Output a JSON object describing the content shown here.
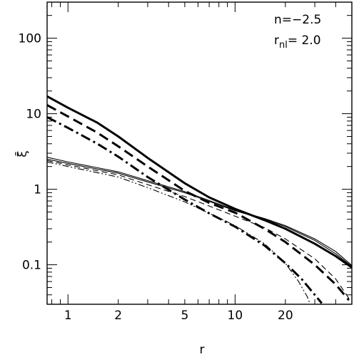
{
  "chart_data": {
    "type": "line",
    "title": "",
    "xlabel": "r",
    "ylabel": "ξ̄",
    "xscale": "log",
    "yscale": "log",
    "xlim": [
      0.75,
      50
    ],
    "ylim": [
      0.03,
      300
    ],
    "xticks": [
      {
        "value": 1,
        "label": "1"
      },
      {
        "value": 2,
        "label": "2"
      },
      {
        "value": 5,
        "label": "5"
      },
      {
        "value": 10,
        "label": "10"
      },
      {
        "value": 20,
        "label": "20"
      }
    ],
    "yticks": [
      {
        "value": 0.1,
        "label": "0.1"
      },
      {
        "value": 1,
        "label": "1"
      },
      {
        "value": 10,
        "label": "10"
      },
      {
        "value": 100,
        "label": "100"
      }
    ],
    "annotations": [
      {
        "id": "n",
        "text": "n=−2.5"
      },
      {
        "id": "rnl_pre",
        "text": "r"
      },
      {
        "id": "rnl_sub",
        "text": "nl"
      },
      {
        "id": "rnl_val",
        "text": "=  2.0"
      }
    ],
    "series": [
      {
        "style": "thick-solid",
        "points": [
          [
            0.75,
            17
          ],
          [
            1,
            12
          ],
          [
            1.5,
            7.6
          ],
          [
            2,
            5.0
          ],
          [
            3,
            2.6
          ],
          [
            5,
            1.2
          ],
          [
            7,
            0.78
          ],
          [
            10,
            0.55
          ],
          [
            15,
            0.39
          ],
          [
            20,
            0.3
          ],
          [
            30,
            0.19
          ],
          [
            40,
            0.13
          ],
          [
            50,
            0.092
          ]
        ]
      },
      {
        "style": "thick-dashed",
        "points": [
          [
            0.75,
            13
          ],
          [
            1,
            9.2
          ],
          [
            1.5,
            5.6
          ],
          [
            2,
            3.7
          ],
          [
            3,
            2.0
          ],
          [
            5,
            0.95
          ],
          [
            7,
            0.66
          ],
          [
            10,
            0.49
          ],
          [
            15,
            0.3
          ],
          [
            20,
            0.2
          ],
          [
            30,
            0.1
          ],
          [
            40,
            0.055
          ],
          [
            48,
            0.034
          ]
        ]
      },
      {
        "style": "thick-dashdot",
        "points": [
          [
            0.75,
            9
          ],
          [
            1,
            6.5
          ],
          [
            1.5,
            4.0
          ],
          [
            2,
            2.7
          ],
          [
            3,
            1.45
          ],
          [
            5,
            0.73
          ],
          [
            7,
            0.48
          ],
          [
            10,
            0.32
          ],
          [
            15,
            0.18
          ],
          [
            20,
            0.105
          ],
          [
            25,
            0.065
          ],
          [
            30,
            0.04
          ],
          [
            33,
            0.031
          ]
        ]
      },
      {
        "style": "thin-solid-a",
        "points": [
          [
            0.75,
            2.65
          ],
          [
            1,
            2.3
          ],
          [
            2,
            1.7
          ],
          [
            3,
            1.3
          ],
          [
            5,
            0.93
          ],
          [
            7,
            0.71
          ],
          [
            10,
            0.53
          ],
          [
            15,
            0.41
          ],
          [
            20,
            0.33
          ],
          [
            30,
            0.22
          ],
          [
            40,
            0.15
          ],
          [
            50,
            0.098
          ]
        ]
      },
      {
        "style": "thin-solid-b",
        "points": [
          [
            0.75,
            2.5
          ],
          [
            1,
            2.2
          ],
          [
            2,
            1.63
          ],
          [
            3,
            1.25
          ],
          [
            5,
            0.9
          ],
          [
            7,
            0.69
          ],
          [
            10,
            0.52
          ],
          [
            15,
            0.4
          ],
          [
            20,
            0.32
          ],
          [
            30,
            0.21
          ],
          [
            40,
            0.14
          ],
          [
            50,
            0.095
          ]
        ]
      },
      {
        "style": "thin-dashed",
        "points": [
          [
            0.75,
            2.4
          ],
          [
            1,
            2.1
          ],
          [
            2,
            1.55
          ],
          [
            3,
            1.15
          ],
          [
            5,
            0.8
          ],
          [
            7,
            0.6
          ],
          [
            10,
            0.44
          ],
          [
            15,
            0.31
          ],
          [
            20,
            0.22
          ],
          [
            30,
            0.12
          ],
          [
            40,
            0.065
          ],
          [
            48,
            0.036
          ]
        ]
      },
      {
        "style": "thin-dashdotdot",
        "points": [
          [
            0.75,
            2.3
          ],
          [
            1,
            2.0
          ],
          [
            2,
            1.45
          ],
          [
            3,
            1.05
          ],
          [
            5,
            0.68
          ],
          [
            7,
            0.48
          ],
          [
            10,
            0.33
          ],
          [
            15,
            0.19
          ],
          [
            20,
            0.105
          ],
          [
            24,
            0.06
          ],
          [
            27,
            0.038
          ],
          [
            28,
            0.031
          ]
        ]
      }
    ]
  }
}
